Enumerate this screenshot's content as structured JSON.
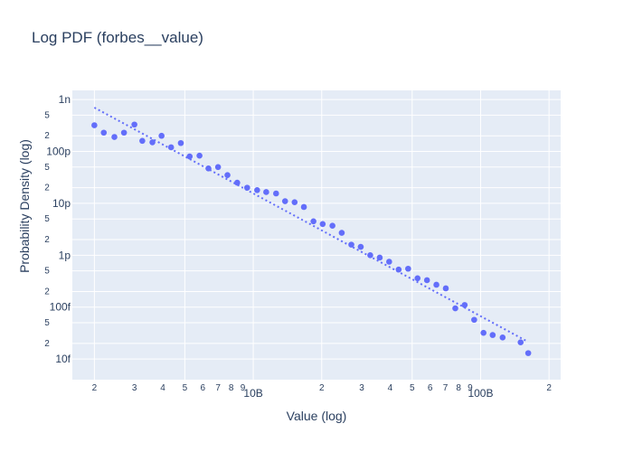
{
  "chart_data": {
    "type": "scatter",
    "title": "Log PDF (forbes__value)",
    "xlabel": "Value (log)",
    "ylabel": "Probability Density (log)",
    "xscale": "log",
    "yscale": "log",
    "xlim": [
      1600000000.0,
      225000000000.0
    ],
    "ylim": [
      4e-15,
      1.5e-09
    ],
    "grid": true,
    "colors": {
      "plot_bg": "#e5ecf6",
      "grid": "#ffffff",
      "marker": "#636efa",
      "text": "#2a3f5f"
    },
    "x_major_ticks": [
      {
        "value": 10000000000.0,
        "label": "10B"
      },
      {
        "value": 100000000000.0,
        "label": "100B"
      }
    ],
    "x_minor_ticks": [
      {
        "value": 2000000000.0,
        "label": "2"
      },
      {
        "value": 3000000000.0,
        "label": "3"
      },
      {
        "value": 4000000000.0,
        "label": "4"
      },
      {
        "value": 5000000000.0,
        "label": "5"
      },
      {
        "value": 6000000000.0,
        "label": "6"
      },
      {
        "value": 7000000000.0,
        "label": "7"
      },
      {
        "value": 8000000000.0,
        "label": "8"
      },
      {
        "value": 9000000000.0,
        "label": "9"
      },
      {
        "value": 20000000000.0,
        "label": "2"
      },
      {
        "value": 30000000000.0,
        "label": "3"
      },
      {
        "value": 40000000000.0,
        "label": "4"
      },
      {
        "value": 50000000000.0,
        "label": "5"
      },
      {
        "value": 60000000000.0,
        "label": "6"
      },
      {
        "value": 70000000000.0,
        "label": "7"
      },
      {
        "value": 80000000000.0,
        "label": "8"
      },
      {
        "value": 90000000000.0,
        "label": "9"
      },
      {
        "value": 200000000000.0,
        "label": "2"
      }
    ],
    "y_major_ticks": [
      {
        "value": 1e-09,
        "label": "1n"
      },
      {
        "value": 1e-10,
        "label": "100p"
      },
      {
        "value": 1e-11,
        "label": "10p"
      },
      {
        "value": 1e-12,
        "label": "1p"
      },
      {
        "value": 1e-13,
        "label": "100f"
      },
      {
        "value": 1e-14,
        "label": "10f"
      }
    ],
    "y_minor_ticks": [
      {
        "value": 5e-10,
        "label": "5"
      },
      {
        "value": 2e-10,
        "label": "2"
      },
      {
        "value": 5e-11,
        "label": "5"
      },
      {
        "value": 2e-11,
        "label": "2"
      },
      {
        "value": 5e-12,
        "label": "5"
      },
      {
        "value": 2e-12,
        "label": "2"
      },
      {
        "value": 5e-13,
        "label": "5"
      },
      {
        "value": 2e-13,
        "label": "2"
      },
      {
        "value": 5e-14,
        "label": "5"
      },
      {
        "value": 2e-14,
        "label": "2"
      }
    ],
    "x_grid_values": [
      2000000000.0,
      5000000000.0,
      10000000000.0,
      20000000000.0,
      50000000000.0,
      100000000000.0,
      200000000000.0
    ],
    "y_grid_values": [
      1e-09,
      5e-10,
      2e-10,
      1e-10,
      5e-11,
      2e-11,
      1e-11,
      5e-12,
      2e-12,
      1e-12,
      5e-13,
      2e-13,
      1e-13,
      5e-14,
      2e-14,
      1e-14
    ],
    "series": [
      {
        "mode": "markers",
        "x": [
          2000000000.0,
          2200000000.0,
          2450000000.0,
          2700000000.0,
          3000000000.0,
          3250000000.0,
          3600000000.0,
          3950000000.0,
          4350000000.0,
          4800000000.0,
          5250000000.0,
          5800000000.0,
          6350000000.0,
          7000000000.0,
          7700000000.0,
          8500000000.0,
          9400000000.0,
          10400000000.0,
          11400000000.0,
          12600000000.0,
          13800000000.0,
          15200000000.0,
          16700000000.0,
          18400000000.0,
          20200000000.0,
          22300000000.0,
          24500000000.0,
          27000000000.0,
          29700000000.0,
          32700000000.0,
          36000000000.0,
          39600000000.0,
          43600000000.0,
          48000000000.0,
          52800000000.0,
          58100000000.0,
          63900000000.0,
          70300000000.0,
          77400000000.0,
          85100000000.0,
          93700000000.0,
          103000000000.0,
          113000000000.0,
          125000000000.0,
          150000000000.0,
          162000000000.0
        ],
        "y": [
          3.2e-10,
          2.3e-10,
          1.9e-10,
          2.3e-10,
          3.3e-10,
          1.6e-10,
          1.5e-10,
          2e-10,
          1.2e-10,
          1.45e-10,
          8e-11,
          8.3e-11,
          4.7e-11,
          5e-11,
          3.5e-11,
          2.5e-11,
          2e-11,
          1.8e-11,
          1.65e-11,
          1.55e-11,
          1.1e-11,
          1.05e-11,
          8.5e-12,
          4.5e-12,
          4e-12,
          3.7e-12,
          2.7e-12,
          1.6e-12,
          1.45e-12,
          1e-12,
          9e-13,
          7.5e-13,
          5.3e-13,
          5.5e-13,
          3.6e-13,
          3.3e-13,
          2.7e-13,
          2.3e-13,
          9.5e-14,
          1.1e-13,
          5.7e-14,
          3.2e-14,
          2.9e-14,
          2.6e-14,
          2.1e-14,
          1.3e-14
        ]
      },
      {
        "mode": "lines",
        "dash": "dot",
        "x": [
          2000000000.0,
          160000000000.0
        ],
        "y": [
          7e-10,
          2.2e-14
        ]
      }
    ]
  }
}
